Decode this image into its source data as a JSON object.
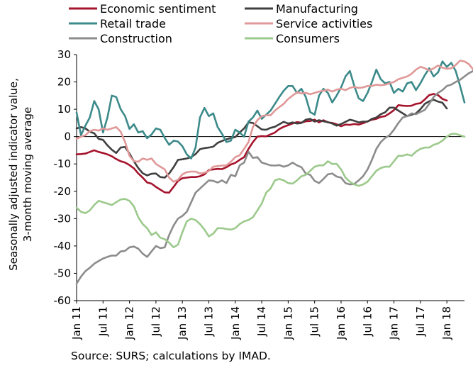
{
  "chart_data": {
    "type": "line",
    "xlabel": "",
    "ylabel_line1": "Seasonally adjusted indicator value,",
    "ylabel_line2": "3-month moving average",
    "ylim": [
      -60,
      30
    ],
    "yticks": [
      30,
      20,
      10,
      0,
      -10,
      -20,
      -30,
      -40,
      -50,
      -60
    ],
    "xtick_labels": [
      "Jan 11",
      "Jul 11",
      "Jan 12",
      "Jul 12",
      "Jan 13",
      "Jul 13",
      "Jan 14",
      "Jul 14",
      "Jan 15",
      "Jul 15",
      "Jan 16",
      "Jul 16",
      "Jan 17",
      "Jul 17",
      "Jan 18"
    ],
    "source": "Source: SURS; calculations by IMAD.",
    "legend_position": "top",
    "x_start": "Jan 2011",
    "series": [
      {
        "name": "Economic sentiment",
        "color": "#a5142c",
        "width": 2.6,
        "values": [
          -6.5,
          -6.4,
          -6.2,
          -5.6,
          -5.0,
          -5.6,
          -6.0,
          -6.5,
          -7.2,
          -8.2,
          -9.0,
          -9.5,
          -10.4,
          -11.6,
          -13.5,
          -15.0,
          -16.8,
          -17.2,
          -18.4,
          -19.4,
          -20.4,
          -20.5,
          -18.4,
          -16.2,
          -15.2,
          -15.0,
          -14.8,
          -14.8,
          -14.5,
          -13.8,
          -12.2,
          -12.0,
          -11.8,
          -11.9,
          -11.2,
          -10.2,
          -9.6,
          -8.5,
          -7.5,
          -4.5,
          -2.0,
          0.0,
          0.2,
          0.1,
          0.8,
          1.5,
          2.8,
          3.6,
          4.2,
          4.8,
          5.3,
          5.1,
          5.6,
          5.7,
          6.2,
          5.2,
          6.0,
          5.2,
          5.0,
          4.5,
          3.8,
          4.4,
          4.3,
          4.6,
          4.4,
          4.9,
          5.6,
          6.2,
          6.5,
          7.2,
          7.5,
          8.5,
          9.7,
          11.5,
          11.3,
          11.2,
          11.3,
          12.0,
          12.2,
          13.6,
          15.2,
          15.6,
          15.2,
          13.8,
          13.2
        ]
      },
      {
        "name": "Manufacturing",
        "color": "#404040",
        "width": 2.6,
        "values": [
          3.0,
          3.5,
          3.0,
          1.8,
          1.2,
          -0.8,
          -1.2,
          -3.2,
          -4.8,
          -6.0,
          -4.0,
          -3.8,
          -6.2,
          -9.0,
          -11.5,
          -13.4,
          -14.2,
          -13.6,
          -13.5,
          -14.8,
          -15.0,
          -13.5,
          -11.2,
          -8.5,
          -8.3,
          -8.0,
          -7.5,
          -6.4,
          -4.6,
          -4.2,
          -4.0,
          -3.7,
          -2.3,
          -1.6,
          -1.0,
          -0.5,
          -0.2,
          1.5,
          3.0,
          5.2,
          5.0,
          3.8,
          2.6,
          2.5,
          3.2,
          3.6,
          4.5,
          5.4,
          4.8,
          5.2,
          4.8,
          5.0,
          6.2,
          6.5,
          5.5,
          6.0,
          5.6,
          5.3,
          4.8,
          4.0,
          4.6,
          5.4,
          6.2,
          5.8,
          5.2,
          5.5,
          5.5,
          6.5,
          7.0,
          8.2,
          8.9,
          10.6,
          10.6,
          9.5,
          8.5,
          7.5,
          8.0,
          8.5,
          10.0,
          12.0,
          12.9,
          13.5,
          12.8,
          12.4,
          10.3
        ]
      },
      {
        "name": "Retail trade",
        "color": "#3d8a8a",
        "width": 2.6,
        "values": [
          8.8,
          0.5,
          4.0,
          7.0,
          13.0,
          10.0,
          1.5,
          7.0,
          15.0,
          14.5,
          10.0,
          7.5,
          2.8,
          4.5,
          1.5,
          2.0,
          -0.6,
          0.8,
          3.0,
          2.5,
          -0.5,
          -3.0,
          -1.5,
          -1.8,
          -3.5,
          -6.5,
          -8.0,
          -4.0,
          7.0,
          10.5,
          7.5,
          8.5,
          3.5,
          1.0,
          -2.0,
          -1.5,
          2.5,
          1.5,
          0.0,
          5.5,
          7.0,
          9.5,
          6.5,
          8.0,
          9.5,
          12.0,
          14.5,
          16.8,
          18.5,
          18.5,
          16.0,
          17.5,
          14.5,
          9.0,
          8.0,
          15.0,
          17.5,
          16.0,
          12.5,
          15.0,
          18.0,
          22.0,
          24.0,
          18.5,
          14.0,
          13.0,
          16.0,
          20.0,
          24.5,
          21.0,
          19.5,
          20.0,
          16.0,
          17.5,
          16.5,
          19.5,
          20.0,
          17.0,
          19.5,
          22.5,
          25.0,
          22.0,
          23.5,
          27.5,
          25.5,
          27.0,
          24.0,
          18.5,
          12.5
        ]
      },
      {
        "name": "Service activities",
        "color": "#e09898",
        "width": 2.6,
        "values": [
          -0.8,
          0.0,
          0.5,
          2.0,
          2.5,
          2.2,
          3.0,
          2.5,
          3.0,
          3.5,
          1.8,
          -2.0,
          -7.0,
          -9.0,
          -9.2,
          -8.0,
          -8.5,
          -8.0,
          -10.0,
          -11.0,
          -12.0,
          -15.0,
          -16.5,
          -15.8,
          -13.8,
          -13.0,
          -12.8,
          -12.8,
          -13.5,
          -13.2,
          -12.6,
          -11.0,
          -10.8,
          -10.6,
          -10.5,
          -9.2,
          -7.5,
          -6.8,
          -4.5,
          -2.0,
          3.5,
          6.0,
          7.5,
          7.8,
          7.8,
          9.5,
          10.8,
          12.0,
          13.8,
          15.0,
          16.2,
          15.8,
          16.0,
          15.5,
          16.0,
          16.5,
          16.8,
          17.2,
          16.5,
          17.2,
          17.5,
          17.0,
          17.8,
          18.2,
          17.8,
          18.0,
          18.5,
          18.5,
          19.0,
          18.8,
          19.0,
          19.5,
          20.0,
          21.0,
          21.5,
          22.0,
          23.0,
          24.5,
          25.5,
          25.0,
          24.2,
          25.0,
          26.0,
          25.2,
          24.8,
          25.0,
          26.2,
          27.8,
          27.5,
          26.5,
          24.5,
          25.0
        ]
      },
      {
        "name": "Construction",
        "color": "#8c8c8c",
        "width": 2.6,
        "values": [
          -53.8,
          -51.2,
          -49.2,
          -48.0,
          -46.5,
          -45.5,
          -44.6,
          -44.0,
          -43.5,
          -43.5,
          -42.0,
          -41.8,
          -40.5,
          -40.2,
          -41.0,
          -42.8,
          -44.0,
          -42.0,
          -40.0,
          -40.8,
          -40.5,
          -36.0,
          -32.5,
          -30.0,
          -29.0,
          -27.5,
          -24.0,
          -20.5,
          -19.0,
          -17.5,
          -16.0,
          -16.2,
          -16.8,
          -16.0,
          -17.0,
          -14.0,
          -14.5,
          -10.5,
          -9.5,
          -5.5,
          -7.8,
          -7.5,
          -9.5,
          -10.0,
          -10.5,
          -10.6,
          -10.4,
          -11.0,
          -10.5,
          -9.5,
          -10.5,
          -11.2,
          -13.5,
          -14.0,
          -16.2,
          -17.0,
          -15.5,
          -13.8,
          -13.5,
          -14.6,
          -15.0,
          -17.0,
          -17.5,
          -17.3,
          -16.0,
          -14.5,
          -12.0,
          -8.5,
          -4.5,
          -2.0,
          -0.5,
          0.5,
          2.5,
          5.0,
          7.0,
          7.5,
          8.5,
          8.2,
          9.0,
          9.8,
          12.0,
          14.5,
          16.0,
          17.0,
          18.5,
          19.0,
          20.0,
          20.8,
          22.0,
          23.2,
          24.0
        ]
      },
      {
        "name": "Consumers",
        "color": "#9cc98c",
        "width": 2.6,
        "values": [
          -26.0,
          -27.5,
          -28.0,
          -27.0,
          -25.0,
          -23.5,
          -24.0,
          -24.5,
          -25.0,
          -24.0,
          -23.0,
          -22.8,
          -23.5,
          -25.5,
          -29.5,
          -32.0,
          -33.5,
          -36.0,
          -35.0,
          -37.0,
          -37.5,
          -38.8,
          -40.5,
          -39.5,
          -35.0,
          -31.0,
          -30.0,
          -30.5,
          -32.0,
          -34.0,
          -36.5,
          -35.5,
          -33.5,
          -33.5,
          -33.8,
          -34.0,
          -33.5,
          -32.0,
          -31.0,
          -30.5,
          -29.5,
          -27.0,
          -24.5,
          -20.5,
          -19.0,
          -16.0,
          -15.5,
          -16.0,
          -17.0,
          -17.2,
          -16.0,
          -14.5,
          -14.0,
          -12.5,
          -11.0,
          -10.5,
          -10.5,
          -9.0,
          -10.0,
          -10.0,
          -12.0,
          -15.0,
          -16.5,
          -17.5,
          -18.0,
          -17.5,
          -16.5,
          -14.5,
          -12.5,
          -11.5,
          -11.0,
          -11.0,
          -9.0,
          -7.0,
          -7.0,
          -6.5,
          -7.0,
          -5.5,
          -4.5,
          -4.0,
          -4.0,
          -3.0,
          -2.5,
          -1.5,
          0.0,
          1.0,
          1.0,
          0.5,
          0.0
        ]
      }
    ]
  }
}
